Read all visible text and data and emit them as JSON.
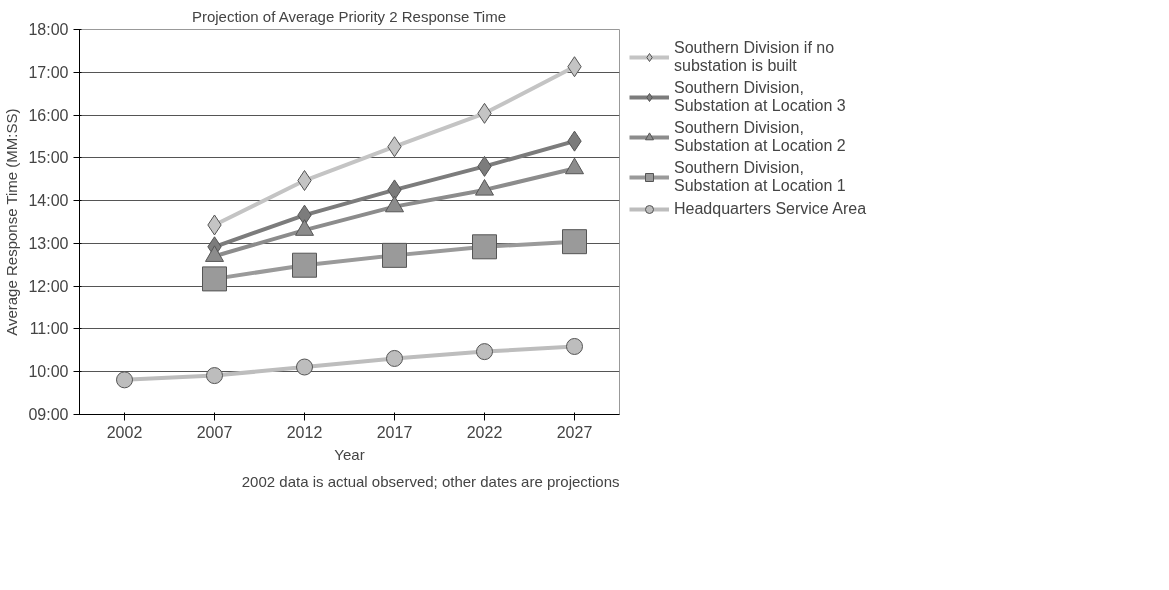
{
  "chart_data": {
    "type": "line",
    "title": "Projection of Average Priority 2 Response Time",
    "xlabel": "Year",
    "ylabel": "Average Response Time (MM:SS)",
    "categories": [
      "2002",
      "2007",
      "2012",
      "2017",
      "2022",
      "2027"
    ],
    "series": [
      {
        "name": "Southern Division if no substation is built",
        "color": "#c4c4c4",
        "marker": "diamond",
        "values": [
          null,
          13.43,
          14.47,
          15.26,
          16.04,
          17.13
        ]
      },
      {
        "name": "Southern Division, Substation at Location 3",
        "color": "#7c7c7c",
        "marker": "diamond",
        "values": [
          null,
          12.92,
          13.66,
          14.25,
          14.8,
          15.39
        ]
      },
      {
        "name": "Southern Division, Substation at Location 2",
        "color": "#8c8c8c",
        "marker": "triangle",
        "values": [
          null,
          12.7,
          13.31,
          13.86,
          14.25,
          14.75
        ]
      },
      {
        "name": "Southern Division, Substation at Location 1",
        "color": "#9a9a9a",
        "marker": "square",
        "values": [
          null,
          12.17,
          12.49,
          12.72,
          12.92,
          13.04
        ]
      },
      {
        "name": "Headquarters Service Area",
        "color": "#bdbdbd",
        "marker": "circle",
        "values": [
          9.81,
          9.91,
          10.11,
          10.31,
          10.47,
          10.59
        ]
      }
    ],
    "ylim": [
      9,
      18
    ],
    "yticks": [
      {
        "value": 9,
        "label": "09:00"
      },
      {
        "value": 10,
        "label": "10:00"
      },
      {
        "value": 11,
        "label": "11:00"
      },
      {
        "value": 12,
        "label": "12:00"
      },
      {
        "value": 13,
        "label": "13:00"
      },
      {
        "value": 14,
        "label": "14:00"
      },
      {
        "value": 15,
        "label": "15:00"
      },
      {
        "value": 16,
        "label": "16:00"
      },
      {
        "value": 17,
        "label": "17:00"
      },
      {
        "value": 18,
        "label": "18:00"
      }
    ],
    "grid": "y",
    "legend": "right",
    "line_style": "solid",
    "annotations": [
      "2002 data is actual observed; other dates are projections"
    ]
  }
}
